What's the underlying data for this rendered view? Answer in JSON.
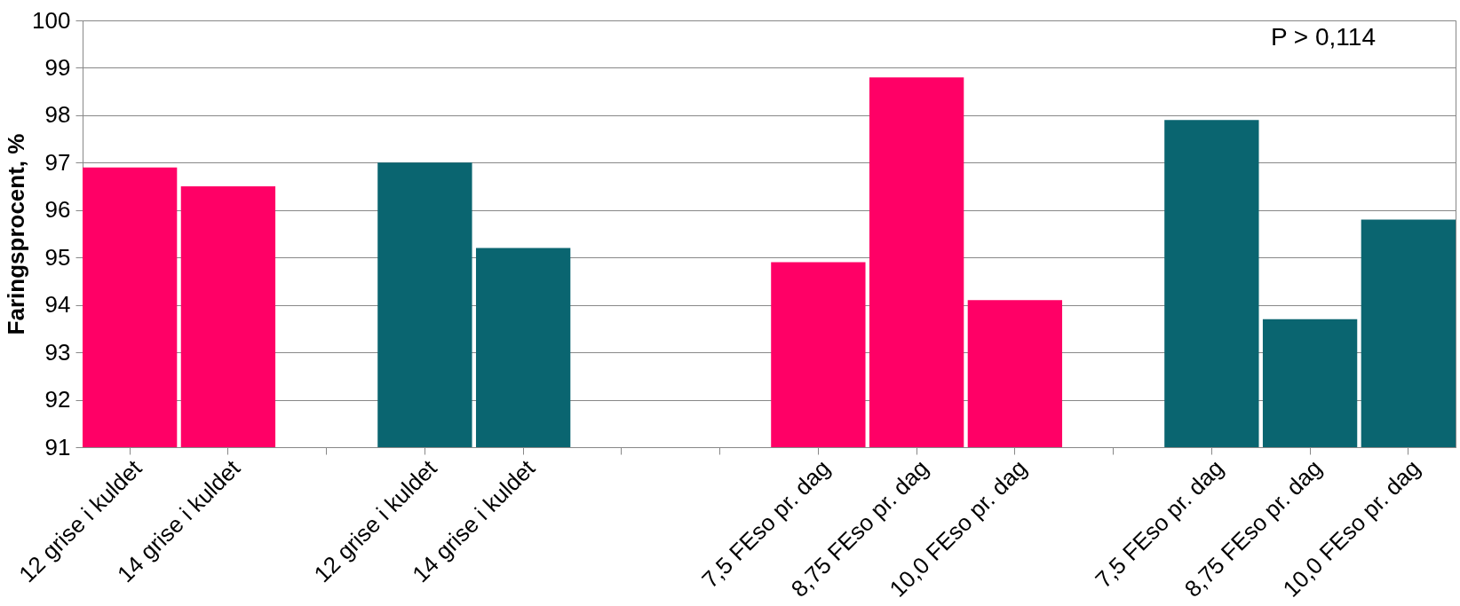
{
  "chart_data": {
    "type": "bar",
    "ylabel": "Faringsprocent, %",
    "categories": [
      "12 grise i kuldet",
      "14 grise i kuldet",
      null,
      "12 grise i kuldet",
      "14 grise i kuldet",
      null,
      null,
      "7,5 FEso pr. dag",
      "8,75 FEso pr. dag",
      "10,0 FEso pr. dag",
      null,
      "7,5 FEso pr. dag",
      "8,75 FEso pr. dag",
      "10,0 FEso pr. dag"
    ],
    "values": [
      96.9,
      96.5,
      null,
      97.0,
      95.2,
      null,
      null,
      94.9,
      98.8,
      94.1,
      null,
      97.9,
      93.7,
      95.8
    ],
    "colors": [
      "#ff0066",
      "#ff0066",
      null,
      "#0a6570",
      "#0a6570",
      null,
      null,
      "#ff0066",
      "#ff0066",
      "#ff0066",
      null,
      "#0a6570",
      "#0a6570",
      "#0a6570"
    ],
    "ylim": [
      91,
      100
    ],
    "yticks": [
      91,
      92,
      93,
      94,
      95,
      96,
      97,
      98,
      99,
      100
    ],
    "grid": "y",
    "annotations": [
      "P > 0,114"
    ]
  }
}
